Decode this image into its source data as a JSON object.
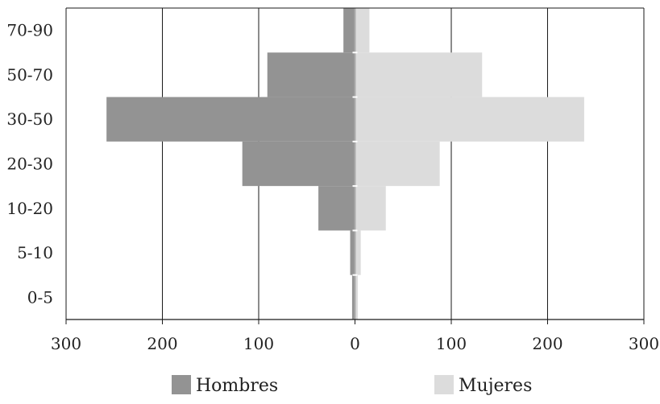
{
  "chart_data": {
    "type": "bar",
    "orientation": "horizontal",
    "layout": "population-pyramid",
    "categories": [
      "0-5",
      "5-10",
      "10-20",
      "20-30",
      "30-50",
      "50-70",
      "70-90"
    ],
    "series": [
      {
        "name": "Hombres",
        "side": "left",
        "color": "#939393",
        "values": [
          3,
          5,
          38,
          117,
          258,
          91,
          12
        ]
      },
      {
        "name": "Mujeres",
        "side": "right",
        "color": "#dcdcdc",
        "values": [
          3,
          6,
          32,
          88,
          238,
          132,
          15
        ]
      }
    ],
    "xlim": [
      -300,
      300
    ],
    "x_ticks": [
      {
        "value": -300,
        "label": "300"
      },
      {
        "value": -200,
        "label": "200"
      },
      {
        "value": -100,
        "label": "100"
      },
      {
        "value": 0,
        "label": "0"
      },
      {
        "value": 100,
        "label": "100"
      },
      {
        "value": 200,
        "label": "200"
      },
      {
        "value": 300,
        "label": "300"
      }
    ],
    "grid": "vertical",
    "legend": "bottom",
    "title": "",
    "xlabel": "",
    "ylabel": ""
  }
}
